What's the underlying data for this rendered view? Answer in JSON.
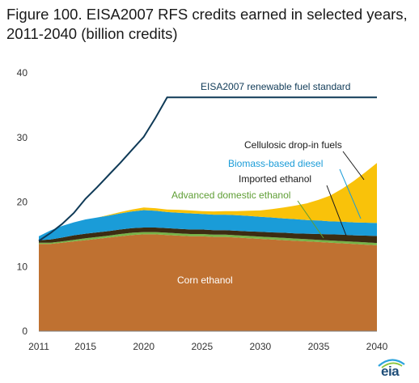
{
  "chart_data": {
    "type": "area",
    "title": "Figure 100. EISA2007 RFS credits earned in selected years, 2011-2040 (billion credits)",
    "xlabel": "",
    "ylabel": "",
    "xlim": [
      2011,
      2040
    ],
    "ylim": [
      0,
      40
    ],
    "x_ticks": [
      "2011",
      "2015",
      "2020",
      "2025",
      "2030",
      "2035",
      "2040"
    ],
    "y_ticks": [
      "0",
      "10",
      "20",
      "30",
      "40"
    ],
    "grid": false,
    "stacked": true,
    "x": [
      2011,
      2012,
      2013,
      2014,
      2015,
      2016,
      2017,
      2018,
      2019,
      2020,
      2021,
      2022,
      2023,
      2024,
      2025,
      2026,
      2027,
      2028,
      2029,
      2030,
      2031,
      2032,
      2033,
      2034,
      2035,
      2036,
      2037,
      2038,
      2039,
      2040
    ],
    "series": [
      {
        "name": "Corn ethanol",
        "color": "#bf7131",
        "values": [
          13.5,
          13.5,
          13.7,
          13.9,
          14.1,
          14.3,
          14.5,
          14.7,
          14.9,
          15.0,
          15.0,
          14.9,
          14.8,
          14.7,
          14.7,
          14.6,
          14.6,
          14.5,
          14.4,
          14.3,
          14.2,
          14.1,
          14.0,
          13.9,
          13.8,
          13.7,
          13.6,
          13.5,
          13.4,
          13.3
        ]
      },
      {
        "name": "Advanced domestic ethanol",
        "color": "#77b347",
        "values": [
          0.2,
          0.2,
          0.2,
          0.25,
          0.3,
          0.3,
          0.3,
          0.35,
          0.35,
          0.35,
          0.35,
          0.35,
          0.35,
          0.35,
          0.35,
          0.35,
          0.35,
          0.35,
          0.35,
          0.35,
          0.35,
          0.35,
          0.35,
          0.35,
          0.35,
          0.35,
          0.35,
          0.35,
          0.35,
          0.35
        ]
      },
      {
        "name": "Imported ethanol",
        "color": "#3c2c12",
        "values": [
          0.4,
          0.5,
          0.6,
          0.7,
          0.7,
          0.7,
          0.7,
          0.7,
          0.7,
          0.7,
          0.7,
          0.7,
          0.7,
          0.7,
          0.7,
          0.7,
          0.7,
          0.7,
          0.7,
          0.75,
          0.75,
          0.8,
          0.8,
          0.85,
          0.9,
          0.95,
          1.0,
          1.0,
          1.05,
          1.1
        ]
      },
      {
        "name": "Biomass-based diesel",
        "color": "#1a9cd8",
        "values": [
          0.6,
          1.4,
          1.8,
          2.0,
          2.2,
          2.3,
          2.4,
          2.5,
          2.6,
          2.7,
          2.6,
          2.5,
          2.5,
          2.5,
          2.4,
          2.4,
          2.4,
          2.4,
          2.4,
          2.3,
          2.3,
          2.2,
          2.2,
          2.1,
          2.1,
          2.0,
          2.0,
          2.0,
          2.0,
          2.0
        ]
      },
      {
        "name": "Cellulosic drop-in fuels",
        "color": "#f9c20a",
        "values": [
          0,
          0,
          0,
          0,
          0,
          0,
          0.1,
          0.2,
          0.3,
          0.4,
          0.4,
          0.4,
          0.45,
          0.45,
          0.45,
          0.5,
          0.55,
          0.65,
          0.8,
          1.0,
          1.3,
          1.7,
          2.1,
          2.6,
          3.2,
          4.0,
          5.1,
          6.4,
          7.8,
          9.3
        ]
      }
    ],
    "standard_line": {
      "name": "EISA2007 renewable  fuel standard",
      "color": "#0f3a57",
      "x": [
        2011,
        2012,
        2013,
        2014,
        2015,
        2016,
        2017,
        2018,
        2019,
        2020,
        2021,
        2022,
        2040
      ],
      "values": [
        14.0,
        15.2,
        16.6,
        18.3,
        20.5,
        22.3,
        24.2,
        26.1,
        28.1,
        30.1,
        33.0,
        36.2,
        36.2
      ]
    },
    "annotations": {
      "standard": "EISA2007 renewable  fuel standard",
      "cellulosic": "Cellulosic drop-in fuels",
      "biomass": "Biomass-based diesel",
      "imported": "Imported ethanol",
      "advanced": "Advanced domestic ethanol",
      "corn": "Corn ethanol"
    }
  },
  "logo": {
    "text": "eia",
    "icon": "eia-logo-icon"
  }
}
